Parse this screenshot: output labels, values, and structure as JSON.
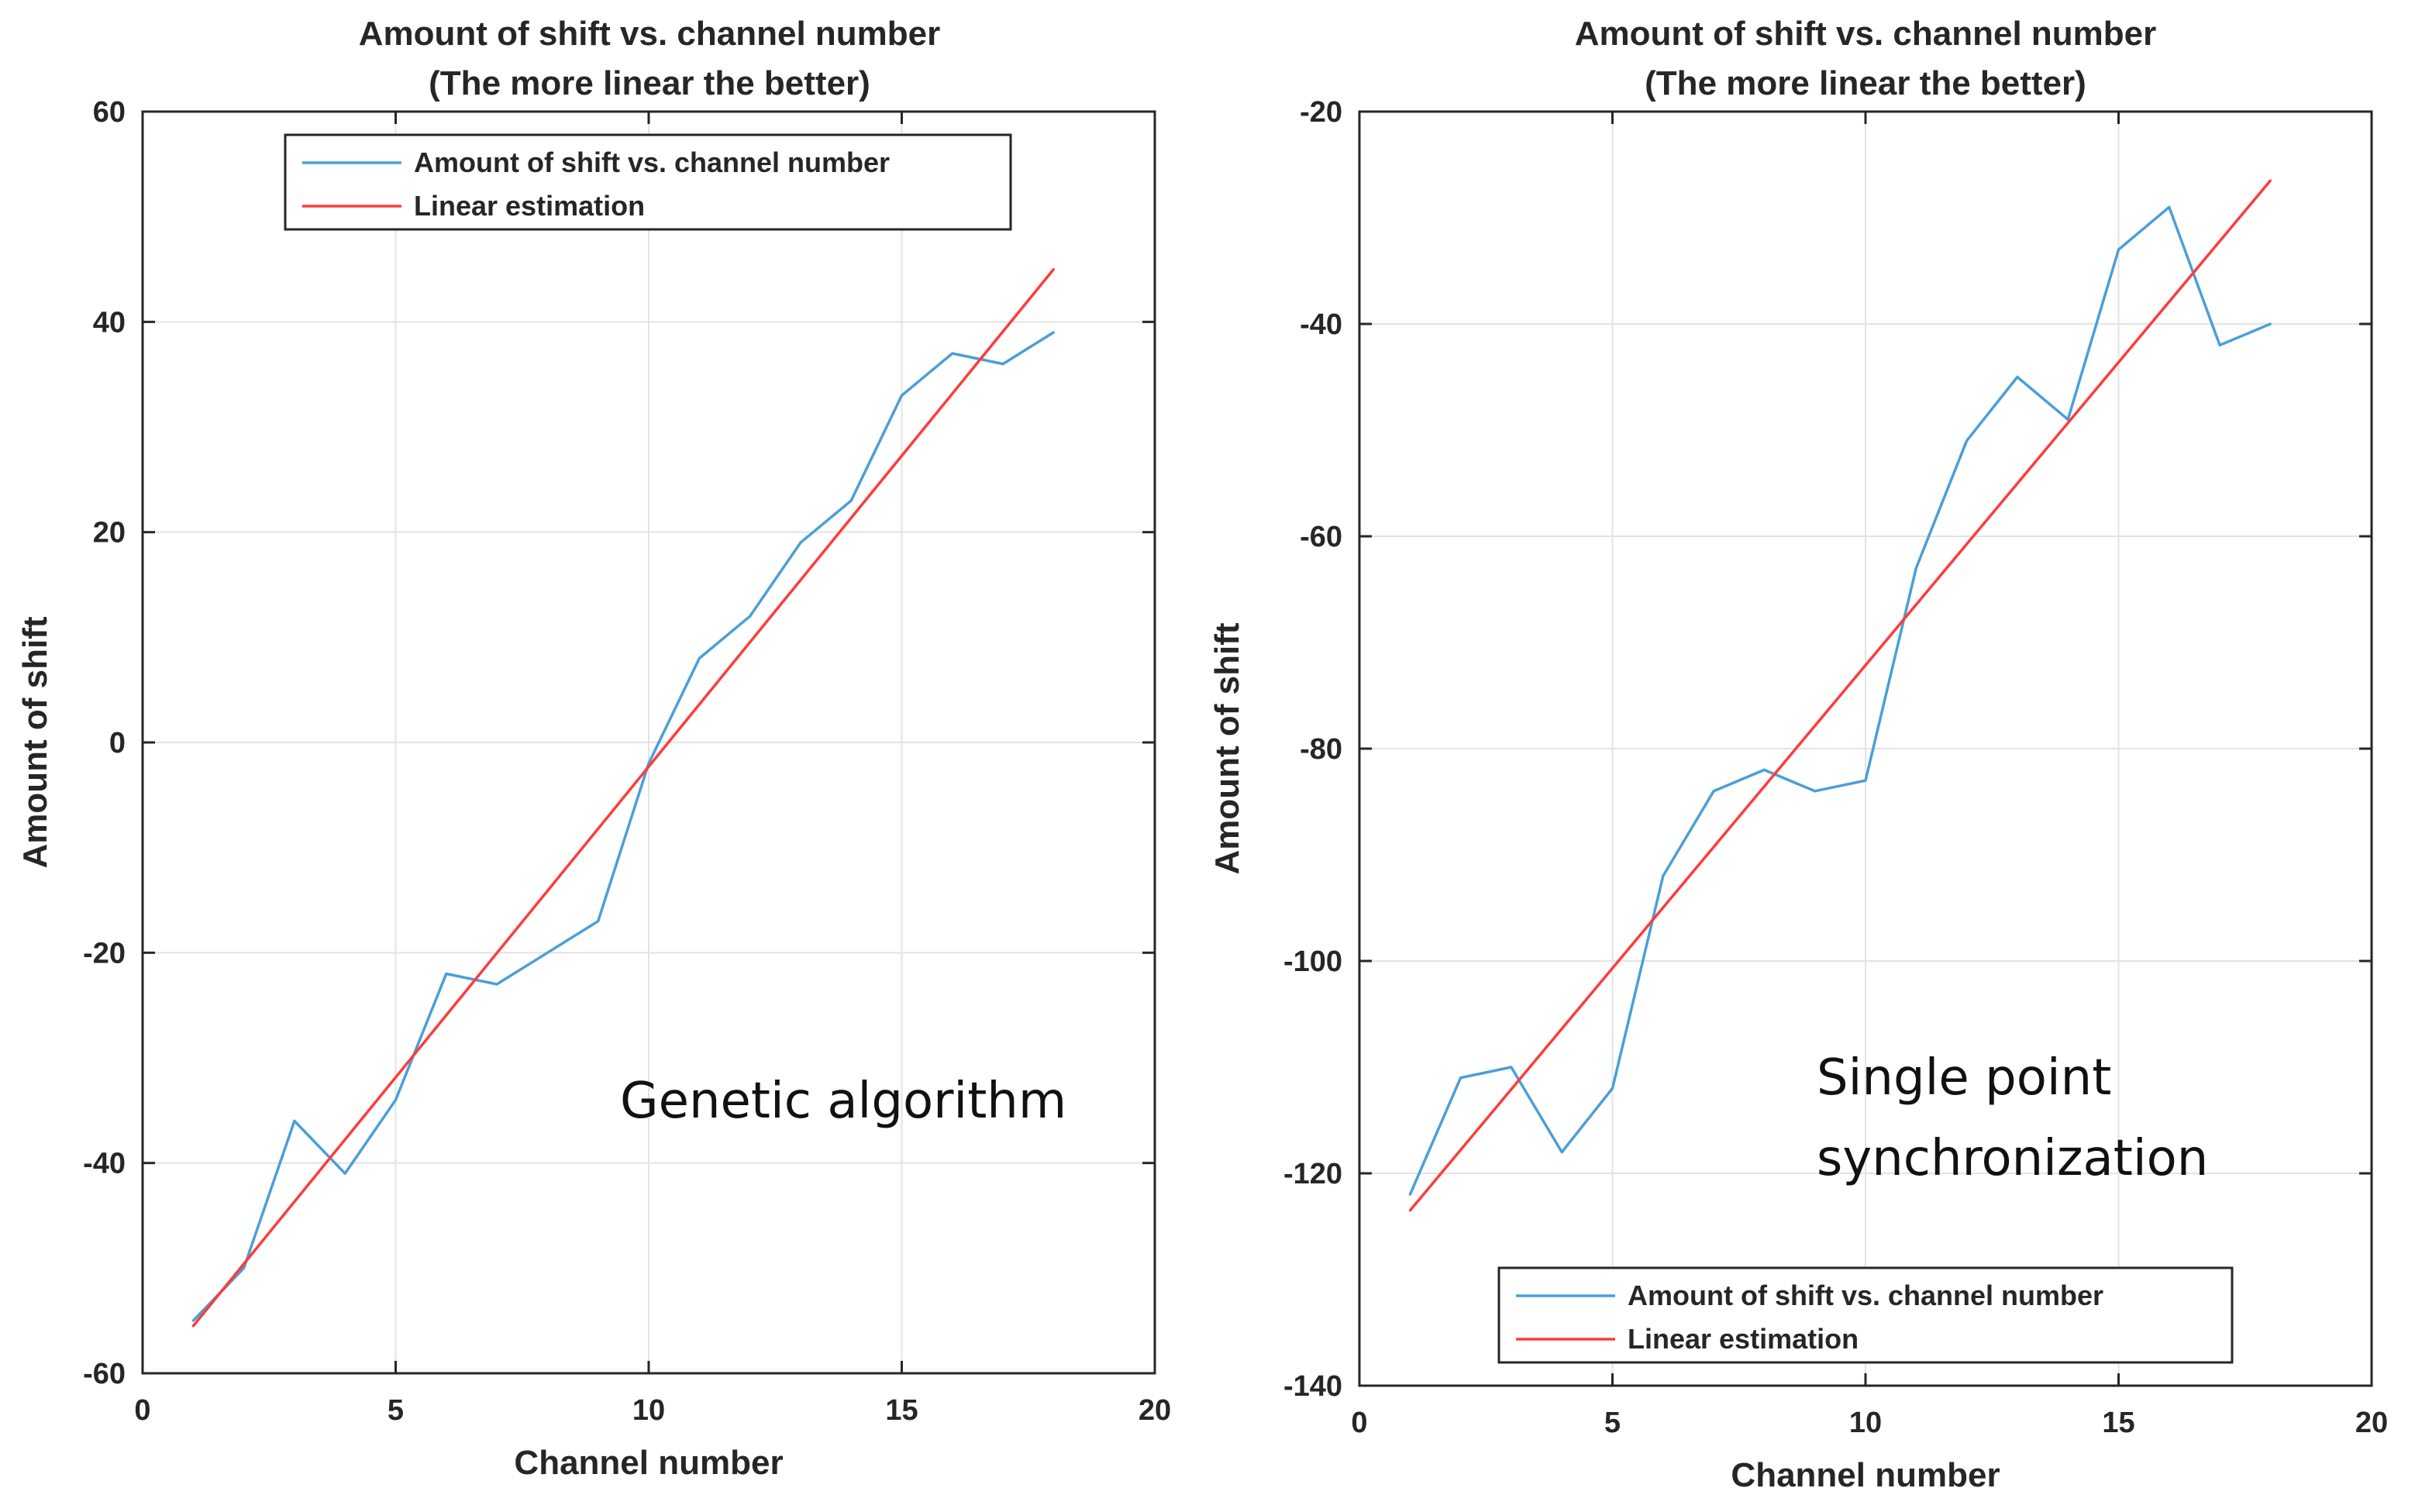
{
  "chart_data": [
    {
      "type": "line",
      "title": "Amount of shift vs. channel number",
      "subtitle": "(The more linear the better)",
      "xlabel": "Channel number",
      "ylabel": "Amount of shift",
      "xlim": [
        0,
        20
      ],
      "ylim": [
        -60,
        60
      ],
      "xticks": [
        0,
        5,
        10,
        15,
        20
      ],
      "yticks": [
        60,
        40,
        20,
        0,
        -20,
        -40,
        -60
      ],
      "grid": true,
      "legend_position": "top",
      "annotation": "Genetic algorithm",
      "series": [
        {
          "name": "Amount of shift vs. channel number",
          "color": "#4a9fd8",
          "x": [
            1,
            2,
            3,
            4,
            5,
            6,
            7,
            8,
            9,
            10,
            11,
            12,
            13,
            14,
            15,
            16,
            17,
            18
          ],
          "values": [
            -55,
            -50,
            -36,
            -41,
            -34,
            -22,
            -23,
            -20,
            -17,
            -2,
            8,
            12,
            19,
            23,
            33,
            37,
            36,
            39
          ]
        },
        {
          "name": "Linear estimation",
          "color": "#ff3b3b",
          "x": [
            1,
            18
          ],
          "values": [
            -55.5,
            45
          ]
        }
      ]
    },
    {
      "type": "line",
      "title": "Amount of shift vs. channel number",
      "subtitle": "(The more linear the better)",
      "xlabel": "Channel number",
      "ylabel": "Amount of shift",
      "xlim": [
        0,
        20
      ],
      "ylim": [
        -140,
        -20
      ],
      "xticks": [
        0,
        5,
        10,
        15,
        20
      ],
      "yticks": [
        -20,
        -40,
        -60,
        -80,
        -100,
        -120,
        -140
      ],
      "grid": true,
      "legend_position": "bottom",
      "annotation": "Single point synchronization",
      "series": [
        {
          "name": "Amount of shift vs. channel number",
          "color": "#4a9fd8",
          "x": [
            1,
            2,
            3,
            4,
            5,
            6,
            7,
            8,
            9,
            10,
            11,
            12,
            13,
            14,
            15,
            16,
            17,
            18
          ],
          "values": [
            -122,
            -111,
            -110,
            -118,
            -112,
            -92,
            -84,
            -82,
            -84,
            -83,
            -63,
            -51,
            -45,
            -49,
            -33,
            -29,
            -42,
            -40
          ]
        },
        {
          "name": "Linear estimation",
          "color": "#ff3b3b",
          "x": [
            1,
            18
          ],
          "values": [
            -123.5,
            -26.5
          ]
        }
      ]
    }
  ]
}
